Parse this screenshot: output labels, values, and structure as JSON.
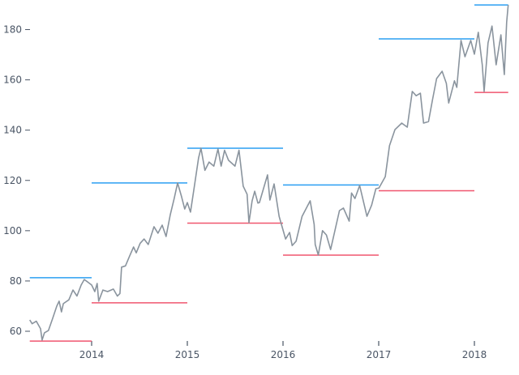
{
  "chart_data": {
    "type": "line",
    "title": "",
    "xlabel": "",
    "ylabel": "",
    "xlim": [
      "2013-05-10",
      "2018-05-10"
    ],
    "ylim": [
      55,
      190
    ],
    "grid": false,
    "x_ticks": [
      "2014",
      "2015",
      "2016",
      "2017",
      "2018"
    ],
    "y_ticks": [
      60,
      80,
      100,
      120,
      140,
      160,
      180
    ],
    "colors": {
      "price": "#8a949e",
      "high": "#2b9ff2",
      "low": "#f0566f",
      "axis_text": "#4a5565"
    },
    "series": [
      {
        "points": [
          [
            "2013-05-10",
            64.5
          ],
          [
            "2013-05-19",
            63
          ],
          [
            "2013-06-04",
            64
          ],
          [
            "2013-06-20",
            61
          ],
          [
            "2013-06-26",
            56.5
          ],
          [
            "2013-07-05",
            59.4
          ],
          [
            "2013-07-20",
            60.3
          ],
          [
            "2013-08-05",
            65
          ],
          [
            "2013-08-21",
            70
          ],
          [
            "2013-08-30",
            72
          ],
          [
            "2013-09-08",
            67.7
          ],
          [
            "2013-09-15",
            71
          ],
          [
            "2013-10-06",
            72.5
          ],
          [
            "2013-10-22",
            76.4
          ],
          [
            "2013-11-06",
            74
          ],
          [
            "2013-11-22",
            78.4
          ],
          [
            "2013-12-04",
            80.6
          ],
          [
            "2013-12-17",
            79.6
          ],
          [
            "2014-01-01",
            78.4
          ],
          [
            "2014-01-13",
            75.8
          ],
          [
            "2014-01-22",
            79
          ],
          [
            "2014-01-28",
            72
          ],
          [
            "2014-02-13",
            76.4
          ],
          [
            "2014-03-03",
            75.8
          ],
          [
            "2014-03-25",
            76.8
          ],
          [
            "2014-04-09",
            74
          ],
          [
            "2014-04-19",
            75
          ],
          [
            "2014-04-25",
            85.5
          ],
          [
            "2014-05-10",
            86
          ],
          [
            "2014-05-26",
            90
          ],
          [
            "2014-06-10",
            93.5
          ],
          [
            "2014-06-20",
            91.2
          ],
          [
            "2014-07-05",
            95
          ],
          [
            "2014-07-20",
            96.7
          ],
          [
            "2014-08-05",
            94.5
          ],
          [
            "2014-08-27",
            101.6
          ],
          [
            "2014-09-11",
            99
          ],
          [
            "2014-09-27",
            102.2
          ],
          [
            "2014-10-12",
            97.7
          ],
          [
            "2014-10-28",
            106.4
          ],
          [
            "2014-11-12",
            112.8
          ],
          [
            "2014-11-25",
            119
          ],
          [
            "2014-12-10",
            113.5
          ],
          [
            "2014-12-22",
            108.6
          ],
          [
            "2015-01-01",
            111.2
          ],
          [
            "2015-01-13",
            107.4
          ],
          [
            "2015-01-28",
            117.7
          ],
          [
            "2015-02-13",
            129
          ],
          [
            "2015-02-22",
            132.8
          ],
          [
            "2015-03-09",
            124
          ],
          [
            "2015-03-25",
            127.3
          ],
          [
            "2015-04-12",
            125.7
          ],
          [
            "2015-04-28",
            132.5
          ],
          [
            "2015-05-10",
            125.7
          ],
          [
            "2015-05-23",
            132
          ],
          [
            "2015-06-07",
            128
          ],
          [
            "2015-07-02",
            125.7
          ],
          [
            "2015-07-17",
            132
          ],
          [
            "2015-08-02",
            117.7
          ],
          [
            "2015-08-17",
            114.5
          ],
          [
            "2015-08-24",
            103.2
          ],
          [
            "2015-09-05",
            111.9
          ],
          [
            "2015-09-15",
            115.7
          ],
          [
            "2015-09-27",
            111
          ],
          [
            "2015-10-03",
            111.2
          ],
          [
            "2015-11-03",
            122.2
          ],
          [
            "2015-11-12",
            112.2
          ],
          [
            "2015-11-28",
            118.6
          ],
          [
            "2015-12-17",
            105.7
          ],
          [
            "2016-01-11",
            96.7
          ],
          [
            "2016-01-26",
            99.3
          ],
          [
            "2016-02-05",
            94.1
          ],
          [
            "2016-02-20",
            95.8
          ],
          [
            "2016-03-14",
            105.7
          ],
          [
            "2016-04-14",
            111.9
          ],
          [
            "2016-04-29",
            102.5
          ],
          [
            "2016-05-03",
            94.5
          ],
          [
            "2016-05-15",
            90.3
          ],
          [
            "2016-05-31",
            100
          ],
          [
            "2016-06-15",
            98.3
          ],
          [
            "2016-07-01",
            92.5
          ],
          [
            "2016-08-04",
            108
          ],
          [
            "2016-08-19",
            109
          ],
          [
            "2016-09-10",
            103.8
          ],
          [
            "2016-09-19",
            115
          ],
          [
            "2016-10-02",
            112.8
          ],
          [
            "2016-10-20",
            118
          ],
          [
            "2016-11-17",
            105.7
          ],
          [
            "2016-12-05",
            110.2
          ],
          [
            "2016-12-21",
            116.7
          ],
          [
            "2017-01-02",
            117
          ],
          [
            "2017-01-26",
            121.5
          ],
          [
            "2017-02-11",
            133.8
          ],
          [
            "2017-03-04",
            140.2
          ],
          [
            "2017-03-30",
            142.8
          ],
          [
            "2017-04-20",
            141.2
          ],
          [
            "2017-05-09",
            155.4
          ],
          [
            "2017-05-24",
            153.7
          ],
          [
            "2017-06-09",
            154.7
          ],
          [
            "2017-06-21",
            142.8
          ],
          [
            "2017-07-10",
            143.4
          ],
          [
            "2017-07-25",
            152
          ],
          [
            "2017-08-10",
            160.5
          ],
          [
            "2017-08-31",
            163.4
          ],
          [
            "2017-09-16",
            158.6
          ],
          [
            "2017-09-25",
            150.8
          ],
          [
            "2017-10-17",
            159.6
          ],
          [
            "2017-10-26",
            157
          ],
          [
            "2017-11-11",
            175.7
          ],
          [
            "2017-11-26",
            169.2
          ],
          [
            "2017-12-18",
            175.7
          ],
          [
            "2018-01-01",
            170.2
          ],
          [
            "2018-01-16",
            178.9
          ],
          [
            "2018-01-31",
            166
          ],
          [
            "2018-02-07",
            155.4
          ],
          [
            "2018-02-22",
            174.7
          ],
          [
            "2018-03-09",
            181.4
          ],
          [
            "2018-03-25",
            166
          ],
          [
            "2018-04-12",
            177.9
          ],
          [
            "2018-04-25",
            162.1
          ],
          [
            "2018-05-04",
            183
          ],
          [
            "2018-05-10",
            189.8
          ]
        ]
      }
    ],
    "yearly_ranges": [
      {
        "start": "2013-05-10",
        "end": "2014-01-01",
        "high": 81.3,
        "low": 56.1
      },
      {
        "start": "2014-01-01",
        "end": "2015-01-01",
        "high": 119,
        "low": 71.3
      },
      {
        "start": "2015-01-01",
        "end": "2016-01-01",
        "high": 132.8,
        "low": 103
      },
      {
        "start": "2016-01-01",
        "end": "2017-01-01",
        "high": 118.2,
        "low": 90.3
      },
      {
        "start": "2017-01-01",
        "end": "2018-01-01",
        "high": 176.3,
        "low": 115.9
      },
      {
        "start": "2018-01-01",
        "end": "2018-05-10",
        "high": 189.8,
        "low": 155
      }
    ]
  }
}
